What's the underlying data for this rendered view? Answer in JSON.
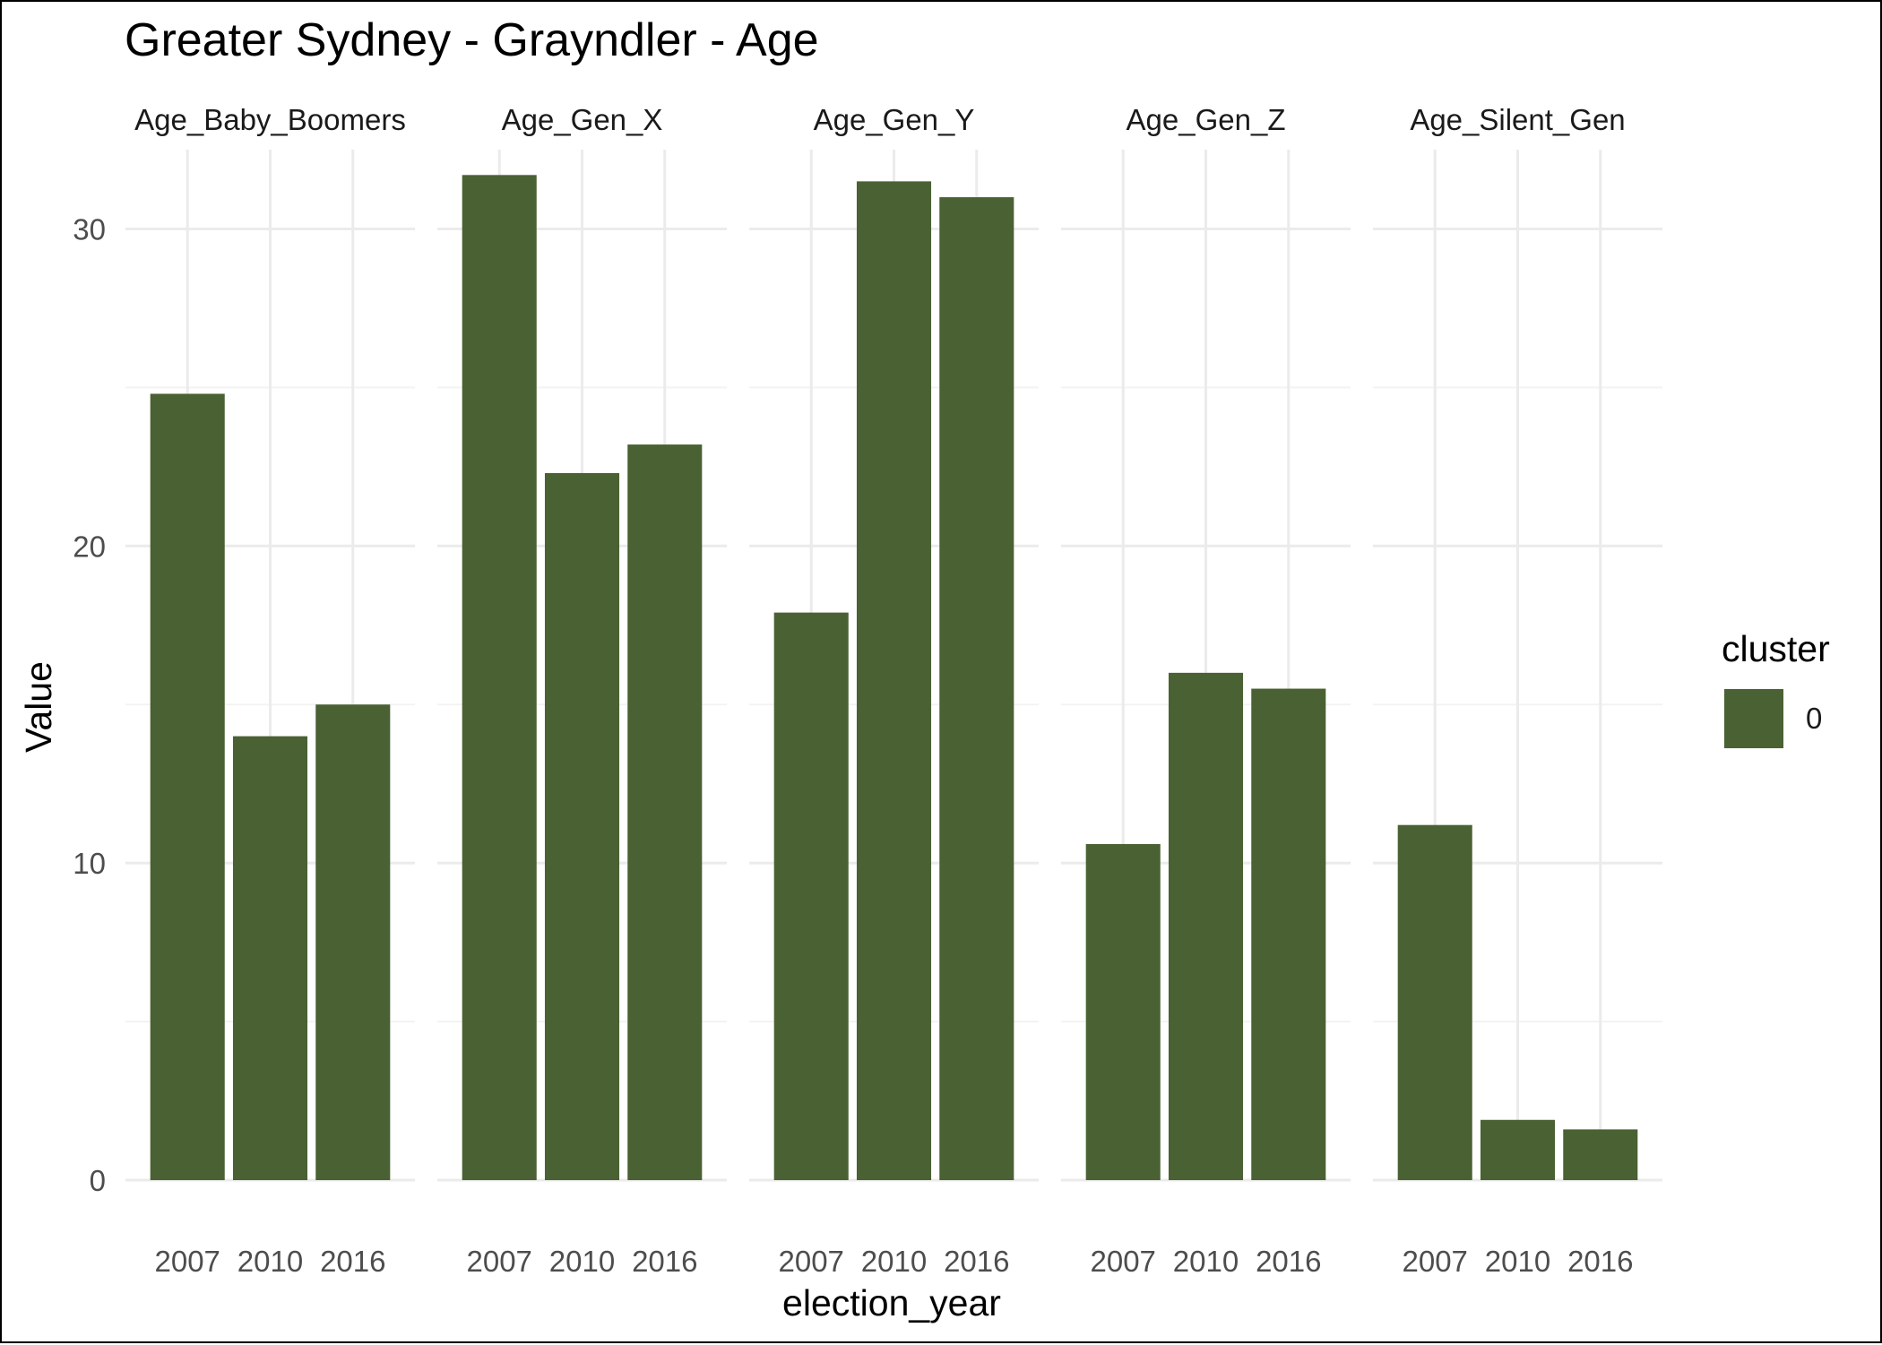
{
  "chart_data": {
    "type": "bar",
    "title": "Greater Sydney - Grayndler - Age",
    "xlabel": "election_year",
    "ylabel": "Value",
    "categories": [
      "2007",
      "2010",
      "2016"
    ],
    "ylim": [
      0,
      32.5
    ],
    "yticks": [
      0,
      10,
      20,
      30
    ],
    "grid": true,
    "legend": {
      "title": "cluster",
      "placement": "right",
      "entries": [
        {
          "label": "0",
          "color": "#4a6133"
        }
      ]
    },
    "panels": [
      {
        "name": "Age_Baby_Boomers",
        "values": [
          24.8,
          14.0,
          15.0
        ]
      },
      {
        "name": "Age_Gen_X",
        "values": [
          31.7,
          22.3,
          23.2
        ]
      },
      {
        "name": "Age_Gen_Y",
        "values": [
          17.9,
          31.5,
          31.0
        ]
      },
      {
        "name": "Age_Gen_Z",
        "values": [
          10.6,
          16.0,
          15.5
        ]
      },
      {
        "name": "Age_Silent_Gen",
        "values": [
          11.2,
          1.9,
          1.6
        ]
      }
    ]
  },
  "colors": {
    "bar": "#4a6133",
    "grid_major": "#ebebeb",
    "grid_minor": "#f3f3f3"
  }
}
